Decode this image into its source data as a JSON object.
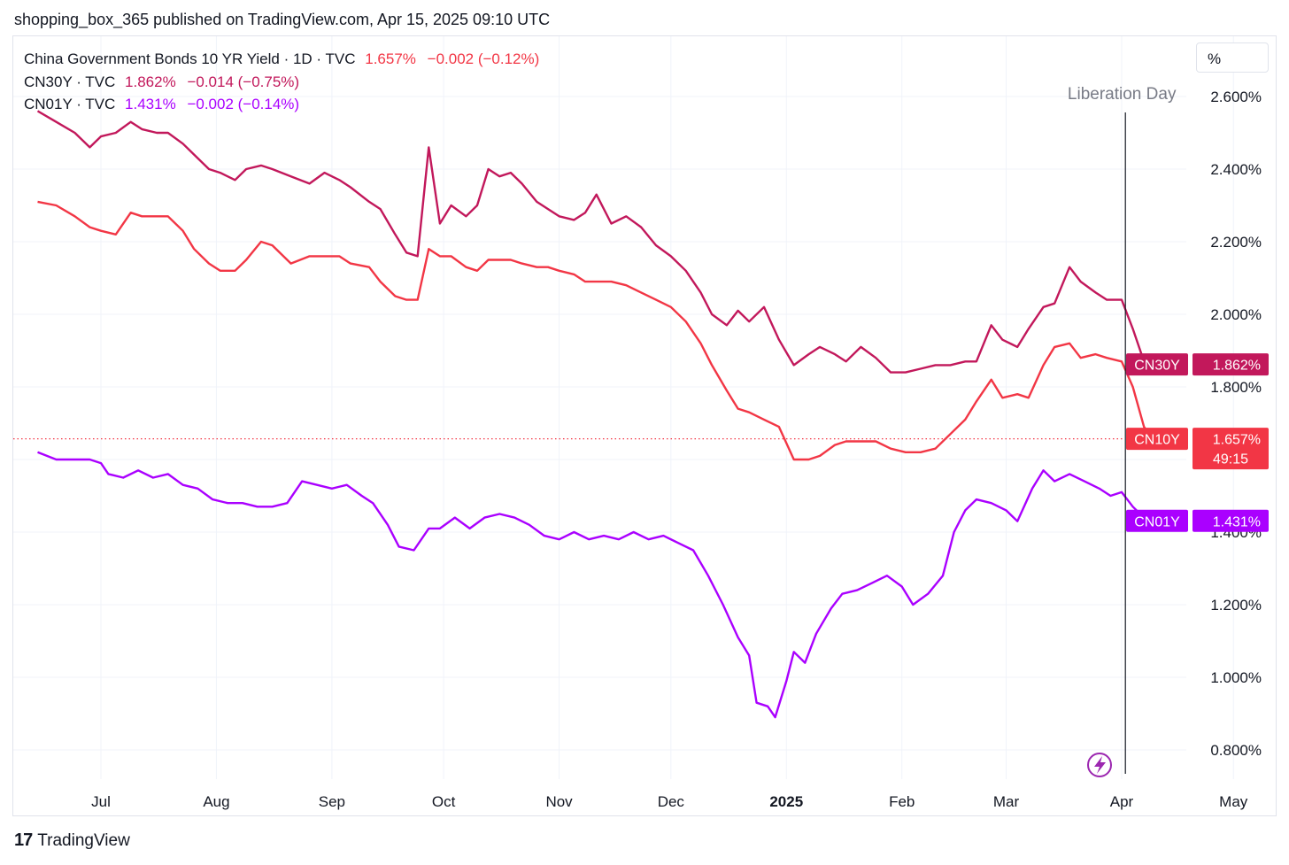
{
  "header": {
    "published": "shopping_box_365 published on TradingView.com, Apr 15, 2025 09:10 UTC"
  },
  "legend": [
    {
      "label": "China Government Bonds 10 YR Yield · 1D · TVC",
      "value": "1.657%",
      "change": "−0.002 (−0.12%)",
      "color": "#f23645"
    },
    {
      "label": "CN30Y · TVC",
      "value": "1.862%",
      "change": "−0.014 (−0.75%)",
      "color": "#c2185b"
    },
    {
      "label": "CN01Y · TVC",
      "value": "1.431%",
      "change": "−0.002 (−0.14%)",
      "color": "#aa00ff"
    }
  ],
  "toolbar": {
    "percent_label": "%"
  },
  "footer": {
    "brand": "TradingView",
    "logo_glyph": "17"
  },
  "chart_data": {
    "type": "line",
    "x_ticks": [
      "Jul",
      "Aug",
      "Sep",
      "Oct",
      "Nov",
      "Dec",
      "2025",
      "Feb",
      "Mar",
      "Apr",
      "May"
    ],
    "y_ticks": [
      "2.600%",
      "2.400%",
      "2.200%",
      "2.000%",
      "1.800%",
      "1.400%",
      "1.200%",
      "1.000%",
      "0.800%"
    ],
    "ylim": [
      0.7,
      2.75
    ],
    "annotations": [
      {
        "label": "Liberation Day",
        "x": "2025-04-02"
      }
    ],
    "current_price_line": {
      "value": 1.657,
      "countdown": "49:15"
    },
    "series": [
      {
        "name": "CN30Y",
        "tag_value": "1.862%",
        "color": "#c2185b",
        "last": 1.862,
        "points": [
          [
            "2024-06-14",
            2.56
          ],
          [
            "2024-06-19",
            2.53
          ],
          [
            "2024-06-24",
            2.5
          ],
          [
            "2024-06-28",
            2.46
          ],
          [
            "2024-07-01",
            2.49
          ],
          [
            "2024-07-05",
            2.5
          ],
          [
            "2024-07-09",
            2.53
          ],
          [
            "2024-07-12",
            2.51
          ],
          [
            "2024-07-16",
            2.5
          ],
          [
            "2024-07-19",
            2.5
          ],
          [
            "2024-07-23",
            2.47
          ],
          [
            "2024-07-26",
            2.44
          ],
          [
            "2024-07-30",
            2.4
          ],
          [
            "2024-08-02",
            2.39
          ],
          [
            "2024-08-06",
            2.37
          ],
          [
            "2024-08-09",
            2.4
          ],
          [
            "2024-08-13",
            2.41
          ],
          [
            "2024-08-16",
            2.4
          ],
          [
            "2024-08-21",
            2.38
          ],
          [
            "2024-08-26",
            2.36
          ],
          [
            "2024-08-30",
            2.39
          ],
          [
            "2024-09-03",
            2.37
          ],
          [
            "2024-09-06",
            2.35
          ],
          [
            "2024-09-11",
            2.31
          ],
          [
            "2024-09-14",
            2.29
          ],
          [
            "2024-09-18",
            2.22
          ],
          [
            "2024-09-21",
            2.17
          ],
          [
            "2024-09-24",
            2.16
          ],
          [
            "2024-09-27",
            2.46
          ],
          [
            "2024-09-30",
            2.25
          ],
          [
            "2024-10-03",
            2.3
          ],
          [
            "2024-10-07",
            2.27
          ],
          [
            "2024-10-10",
            2.3
          ],
          [
            "2024-10-13",
            2.4
          ],
          [
            "2024-10-16",
            2.38
          ],
          [
            "2024-10-19",
            2.39
          ],
          [
            "2024-10-22",
            2.36
          ],
          [
            "2024-10-26",
            2.31
          ],
          [
            "2024-10-29",
            2.29
          ],
          [
            "2024-11-01",
            2.27
          ],
          [
            "2024-11-05",
            2.26
          ],
          [
            "2024-11-08",
            2.28
          ],
          [
            "2024-11-11",
            2.33
          ],
          [
            "2024-11-15",
            2.25
          ],
          [
            "2024-11-19",
            2.27
          ],
          [
            "2024-11-23",
            2.24
          ],
          [
            "2024-11-27",
            2.19
          ],
          [
            "2024-12-01",
            2.16
          ],
          [
            "2024-12-05",
            2.12
          ],
          [
            "2024-12-09",
            2.06
          ],
          [
            "2024-12-12",
            2.0
          ],
          [
            "2024-12-16",
            1.97
          ],
          [
            "2024-12-19",
            2.01
          ],
          [
            "2024-12-22",
            1.98
          ],
          [
            "2024-12-26",
            2.02
          ],
          [
            "2024-12-30",
            1.93
          ],
          [
            "2025-01-03",
            1.86
          ],
          [
            "2025-01-07",
            1.89
          ],
          [
            "2025-01-10",
            1.91
          ],
          [
            "2025-01-14",
            1.89
          ],
          [
            "2025-01-17",
            1.87
          ],
          [
            "2025-01-21",
            1.91
          ],
          [
            "2025-01-25",
            1.88
          ],
          [
            "2025-01-29",
            1.84
          ],
          [
            "2025-02-02",
            1.84
          ],
          [
            "2025-02-06",
            1.85
          ],
          [
            "2025-02-10",
            1.86
          ],
          [
            "2025-02-14",
            1.86
          ],
          [
            "2025-02-18",
            1.87
          ],
          [
            "2025-02-21",
            1.87
          ],
          [
            "2025-02-25",
            1.97
          ],
          [
            "2025-02-28",
            1.93
          ],
          [
            "2025-03-04",
            1.91
          ],
          [
            "2025-03-07",
            1.96
          ],
          [
            "2025-03-11",
            2.02
          ],
          [
            "2025-03-14",
            2.03
          ],
          [
            "2025-03-18",
            2.13
          ],
          [
            "2025-03-21",
            2.09
          ],
          [
            "2025-03-25",
            2.06
          ],
          [
            "2025-03-28",
            2.04
          ],
          [
            "2025-04-01",
            2.04
          ],
          [
            "2025-04-04",
            1.96
          ],
          [
            "2025-04-07",
            1.87
          ],
          [
            "2025-04-10",
            1.87
          ],
          [
            "2025-04-14",
            1.862
          ]
        ]
      },
      {
        "name": "CN10Y",
        "tag_value": "1.657%",
        "color": "#f23645",
        "last": 1.657,
        "points": [
          [
            "2024-06-14",
            2.31
          ],
          [
            "2024-06-19",
            2.3
          ],
          [
            "2024-06-24",
            2.27
          ],
          [
            "2024-06-28",
            2.24
          ],
          [
            "2024-07-01",
            2.23
          ],
          [
            "2024-07-05",
            2.22
          ],
          [
            "2024-07-09",
            2.28
          ],
          [
            "2024-07-12",
            2.27
          ],
          [
            "2024-07-16",
            2.27
          ],
          [
            "2024-07-19",
            2.27
          ],
          [
            "2024-07-23",
            2.23
          ],
          [
            "2024-07-26",
            2.18
          ],
          [
            "2024-07-30",
            2.14
          ],
          [
            "2024-08-02",
            2.12
          ],
          [
            "2024-08-06",
            2.12
          ],
          [
            "2024-08-09",
            2.15
          ],
          [
            "2024-08-13",
            2.2
          ],
          [
            "2024-08-16",
            2.19
          ],
          [
            "2024-08-21",
            2.14
          ],
          [
            "2024-08-26",
            2.16
          ],
          [
            "2024-08-30",
            2.16
          ],
          [
            "2024-09-03",
            2.16
          ],
          [
            "2024-09-06",
            2.14
          ],
          [
            "2024-09-11",
            2.13
          ],
          [
            "2024-09-14",
            2.09
          ],
          [
            "2024-09-18",
            2.05
          ],
          [
            "2024-09-21",
            2.04
          ],
          [
            "2024-09-24",
            2.04
          ],
          [
            "2024-09-27",
            2.18
          ],
          [
            "2024-09-30",
            2.16
          ],
          [
            "2024-10-03",
            2.16
          ],
          [
            "2024-10-07",
            2.13
          ],
          [
            "2024-10-10",
            2.12
          ],
          [
            "2024-10-13",
            2.15
          ],
          [
            "2024-10-16",
            2.15
          ],
          [
            "2024-10-19",
            2.15
          ],
          [
            "2024-10-22",
            2.14
          ],
          [
            "2024-10-26",
            2.13
          ],
          [
            "2024-10-29",
            2.13
          ],
          [
            "2024-11-01",
            2.12
          ],
          [
            "2024-11-05",
            2.11
          ],
          [
            "2024-11-08",
            2.09
          ],
          [
            "2024-11-11",
            2.09
          ],
          [
            "2024-11-15",
            2.09
          ],
          [
            "2024-11-19",
            2.08
          ],
          [
            "2024-11-23",
            2.06
          ],
          [
            "2024-11-27",
            2.04
          ],
          [
            "2024-12-01",
            2.02
          ],
          [
            "2024-12-05",
            1.98
          ],
          [
            "2024-12-09",
            1.92
          ],
          [
            "2024-12-12",
            1.86
          ],
          [
            "2024-12-16",
            1.79
          ],
          [
            "2024-12-19",
            1.74
          ],
          [
            "2024-12-22",
            1.73
          ],
          [
            "2024-12-26",
            1.71
          ],
          [
            "2024-12-30",
            1.69
          ],
          [
            "2025-01-03",
            1.6
          ],
          [
            "2025-01-07",
            1.6
          ],
          [
            "2025-01-10",
            1.61
          ],
          [
            "2025-01-14",
            1.64
          ],
          [
            "2025-01-17",
            1.65
          ],
          [
            "2025-01-21",
            1.65
          ],
          [
            "2025-01-25",
            1.65
          ],
          [
            "2025-01-29",
            1.63
          ],
          [
            "2025-02-02",
            1.62
          ],
          [
            "2025-02-06",
            1.62
          ],
          [
            "2025-02-10",
            1.63
          ],
          [
            "2025-02-14",
            1.67
          ],
          [
            "2025-02-18",
            1.71
          ],
          [
            "2025-02-21",
            1.76
          ],
          [
            "2025-02-25",
            1.82
          ],
          [
            "2025-02-28",
            1.77
          ],
          [
            "2025-03-04",
            1.78
          ],
          [
            "2025-03-07",
            1.77
          ],
          [
            "2025-03-11",
            1.86
          ],
          [
            "2025-03-14",
            1.91
          ],
          [
            "2025-03-18",
            1.92
          ],
          [
            "2025-03-21",
            1.88
          ],
          [
            "2025-03-25",
            1.89
          ],
          [
            "2025-03-28",
            1.88
          ],
          [
            "2025-04-01",
            1.87
          ],
          [
            "2025-04-04",
            1.8
          ],
          [
            "2025-04-07",
            1.69
          ],
          [
            "2025-04-10",
            1.65
          ],
          [
            "2025-04-14",
            1.657
          ]
        ]
      },
      {
        "name": "CN01Y",
        "tag_value": "1.431%",
        "color": "#aa00ff",
        "last": 1.431,
        "points": [
          [
            "2024-06-14",
            1.62
          ],
          [
            "2024-06-19",
            1.6
          ],
          [
            "2024-06-24",
            1.6
          ],
          [
            "2024-06-28",
            1.6
          ],
          [
            "2024-07-01",
            1.59
          ],
          [
            "2024-07-03",
            1.56
          ],
          [
            "2024-07-07",
            1.55
          ],
          [
            "2024-07-11",
            1.57
          ],
          [
            "2024-07-15",
            1.55
          ],
          [
            "2024-07-19",
            1.56
          ],
          [
            "2024-07-23",
            1.53
          ],
          [
            "2024-07-27",
            1.52
          ],
          [
            "2024-07-31",
            1.49
          ],
          [
            "2024-08-04",
            1.48
          ],
          [
            "2024-08-08",
            1.48
          ],
          [
            "2024-08-12",
            1.47
          ],
          [
            "2024-08-16",
            1.47
          ],
          [
            "2024-08-20",
            1.48
          ],
          [
            "2024-08-24",
            1.54
          ],
          [
            "2024-08-28",
            1.53
          ],
          [
            "2024-09-01",
            1.52
          ],
          [
            "2024-09-05",
            1.53
          ],
          [
            "2024-09-09",
            1.5
          ],
          [
            "2024-09-12",
            1.48
          ],
          [
            "2024-09-16",
            1.42
          ],
          [
            "2024-09-19",
            1.36
          ],
          [
            "2024-09-23",
            1.35
          ],
          [
            "2024-09-27",
            1.41
          ],
          [
            "2024-09-30",
            1.41
          ],
          [
            "2024-10-04",
            1.44
          ],
          [
            "2024-10-08",
            1.41
          ],
          [
            "2024-10-12",
            1.44
          ],
          [
            "2024-10-16",
            1.45
          ],
          [
            "2024-10-20",
            1.44
          ],
          [
            "2024-10-24",
            1.42
          ],
          [
            "2024-10-28",
            1.39
          ],
          [
            "2024-11-01",
            1.38
          ],
          [
            "2024-11-05",
            1.4
          ],
          [
            "2024-11-09",
            1.38
          ],
          [
            "2024-11-13",
            1.39
          ],
          [
            "2024-11-17",
            1.38
          ],
          [
            "2024-11-21",
            1.4
          ],
          [
            "2024-11-25",
            1.38
          ],
          [
            "2024-11-29",
            1.39
          ],
          [
            "2024-12-03",
            1.37
          ],
          [
            "2024-12-07",
            1.35
          ],
          [
            "2024-12-11",
            1.28
          ],
          [
            "2024-12-15",
            1.2
          ],
          [
            "2024-12-19",
            1.11
          ],
          [
            "2024-12-22",
            1.06
          ],
          [
            "2024-12-24",
            0.93
          ],
          [
            "2024-12-27",
            0.92
          ],
          [
            "2024-12-29",
            0.89
          ],
          [
            "2025-01-01",
            0.99
          ],
          [
            "2025-01-03",
            1.07
          ],
          [
            "2025-01-06",
            1.04
          ],
          [
            "2025-01-09",
            1.12
          ],
          [
            "2025-01-13",
            1.19
          ],
          [
            "2025-01-16",
            1.23
          ],
          [
            "2025-01-20",
            1.24
          ],
          [
            "2025-01-24",
            1.26
          ],
          [
            "2025-01-28",
            1.28
          ],
          [
            "2025-02-01",
            1.25
          ],
          [
            "2025-02-04",
            1.2
          ],
          [
            "2025-02-08",
            1.23
          ],
          [
            "2025-02-12",
            1.28
          ],
          [
            "2025-02-15",
            1.4
          ],
          [
            "2025-02-18",
            1.46
          ],
          [
            "2025-02-21",
            1.49
          ],
          [
            "2025-02-25",
            1.48
          ],
          [
            "2025-03-01",
            1.46
          ],
          [
            "2025-03-04",
            1.43
          ],
          [
            "2025-03-08",
            1.52
          ],
          [
            "2025-03-11",
            1.57
          ],
          [
            "2025-03-14",
            1.54
          ],
          [
            "2025-03-18",
            1.56
          ],
          [
            "2025-03-22",
            1.54
          ],
          [
            "2025-03-26",
            1.52
          ],
          [
            "2025-03-29",
            1.5
          ],
          [
            "2025-04-01",
            1.51
          ],
          [
            "2025-04-04",
            1.47
          ],
          [
            "2025-04-08",
            1.43
          ],
          [
            "2025-04-11",
            1.432
          ],
          [
            "2025-04-14",
            1.431
          ]
        ]
      }
    ]
  }
}
